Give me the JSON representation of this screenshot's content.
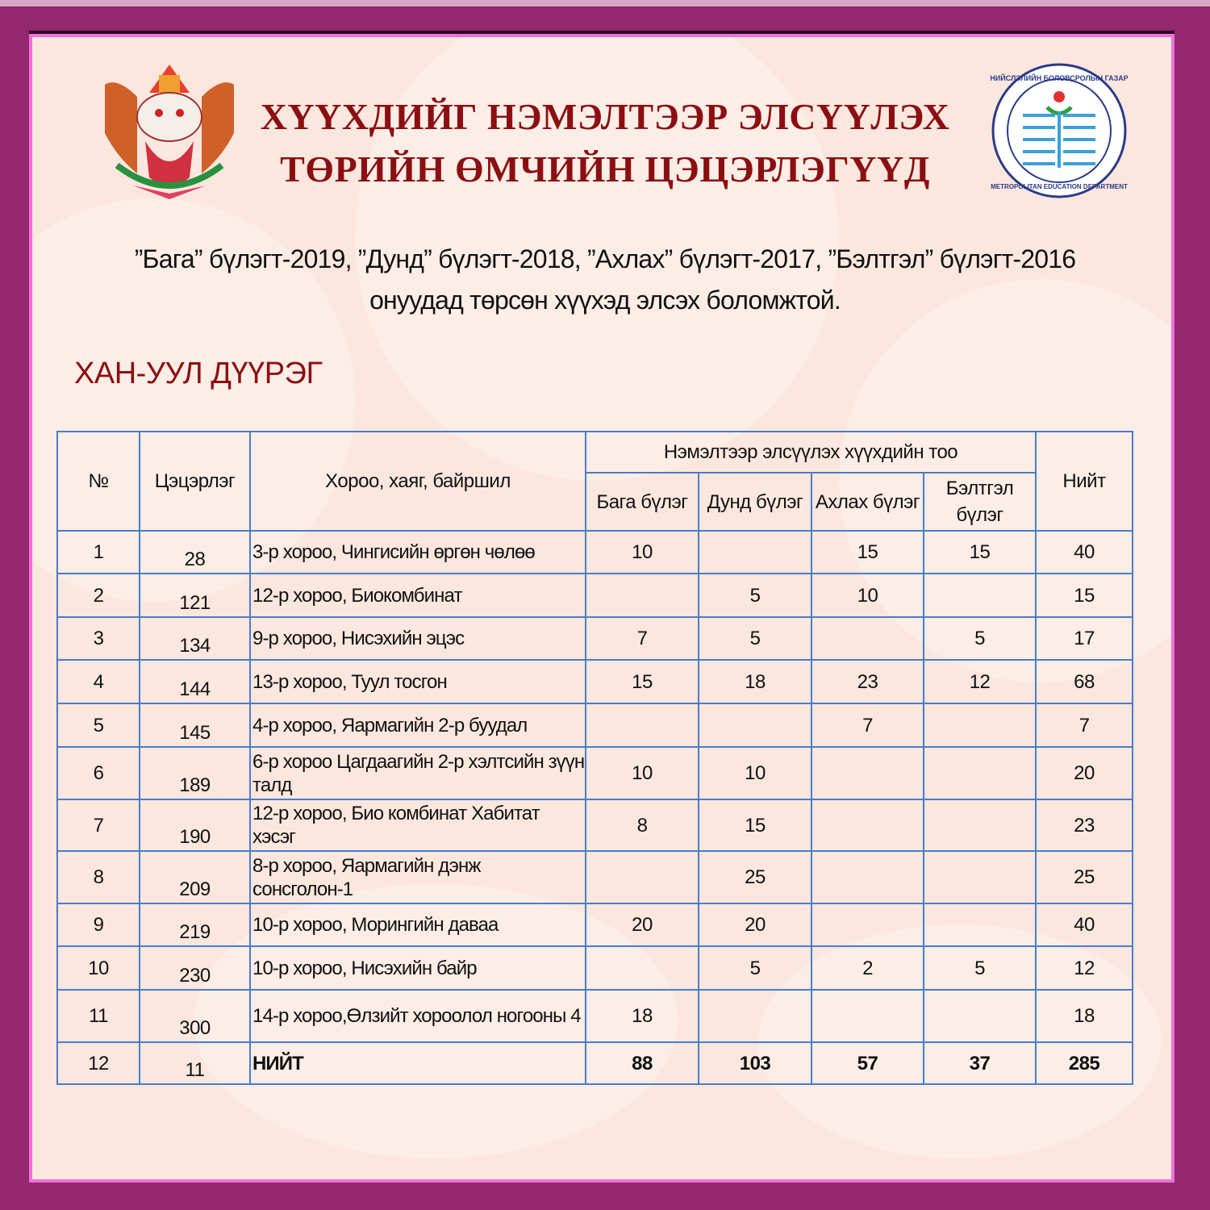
{
  "header": {
    "title_line1": "ХҮҮХДИЙГ НЭМЭЛТЭЭР ЭЛСҮҮЛЭХ",
    "title_line2": "ТӨРИЙН ӨМЧИЙН ЦЭЦЭРЛЭГҮҮД",
    "left_logo": "state-emblem-mongolia",
    "right_logo": {
      "icon": "metropolitan-education-department-seal",
      "text_top": "НИЙСЛЭЛИЙН БОЛОВСРОЛЫН ГАЗАР",
      "text_bottom": "METROPOLITAN EDUCATION DEPARTMENT"
    }
  },
  "subtitle_line1": "”Бага” бүлэгт-2019, ”Дунд” бүлэгт-2018, ”Ахлах” бүлэгт-2017, ”Бэлтгэл” бүлэгт-2016",
  "subtitle_line2": "онуудад төрсөн хүүхэд элсэх боломжтой.",
  "district": "ХАН-УУЛ ДҮҮРЭГ",
  "table": {
    "headers": {
      "no": "№",
      "kindergarten": "Цэцэрлэг",
      "address": "Хороо, хаяг, байршил",
      "group_header": "Нэмэлтээр элсүүлэх хүүхдийн тоо",
      "baga": "Бага бүлэг",
      "dund": "Дунд бүлэг",
      "ahlah": "Ахлах бүлэг",
      "beltgel": "Бэлтгэл бүлэг",
      "total": "Нийт"
    },
    "rows": [
      {
        "no": "1",
        "k": "28",
        "addr": "3-р хороо, Чингисийн өргөн чөлөө",
        "baga": "10",
        "dund": "",
        "ahlah": "15",
        "beltgel": "15",
        "total": "40"
      },
      {
        "no": "2",
        "k": "121",
        "addr": "12-р хороо, Биокомбинат",
        "baga": "",
        "dund": "5",
        "ahlah": "10",
        "beltgel": "",
        "total": "15"
      },
      {
        "no": "3",
        "k": "134",
        "addr": "9-р хороо, Нисэхийн эцэс",
        "baga": "7",
        "dund": "5",
        "ahlah": "",
        "beltgel": "5",
        "total": "17"
      },
      {
        "no": "4",
        "k": "144",
        "addr": "13-р хороо, Туул тосгон",
        "baga": "15",
        "dund": "18",
        "ahlah": "23",
        "beltgel": "12",
        "total": "68"
      },
      {
        "no": "5",
        "k": "145",
        "addr": "4-р хороо, Яармагийн 2-р буудал",
        "baga": "",
        "dund": "",
        "ahlah": "7",
        "beltgel": "",
        "total": "7"
      },
      {
        "no": "6",
        "k": "189",
        "addr": "6-р хороо Цагдаагийн 2-р хэлтсийн зүүн талд",
        "baga": "10",
        "dund": "10",
        "ahlah": "",
        "beltgel": "",
        "total": "20"
      },
      {
        "no": "7",
        "k": "190",
        "addr": "12-р хороо, Био комбинат Хабитат хэсэг",
        "baga": "8",
        "dund": "15",
        "ahlah": "",
        "beltgel": "",
        "total": "23"
      },
      {
        "no": "8",
        "k": "209",
        "addr": "8-р хороо, Яармагийн дэнж сонсголон-1",
        "baga": "",
        "dund": "25",
        "ahlah": "",
        "beltgel": "",
        "total": "25"
      },
      {
        "no": "9",
        "k": "219",
        "addr": "10-р хороо, Морингийн даваа",
        "baga": "20",
        "dund": "20",
        "ahlah": "",
        "beltgel": "",
        "total": "40"
      },
      {
        "no": "10",
        "k": "230",
        "addr": "10-р хороо, Нисэхийн байр",
        "baga": "",
        "dund": "5",
        "ahlah": "2",
        "beltgel": "5",
        "total": "12"
      },
      {
        "no": "11",
        "k": "300",
        "addr": "14-р хороо,Өлзийт хороолол ногооны 4",
        "baga": "18",
        "dund": "",
        "ahlah": "",
        "beltgel": "",
        "total": "18"
      },
      {
        "no": "12",
        "k": "11",
        "addr": "НИЙТ",
        "baga": "88",
        "dund": "103",
        "ahlah": "57",
        "beltgel": "37",
        "total": "285"
      }
    ]
  }
}
